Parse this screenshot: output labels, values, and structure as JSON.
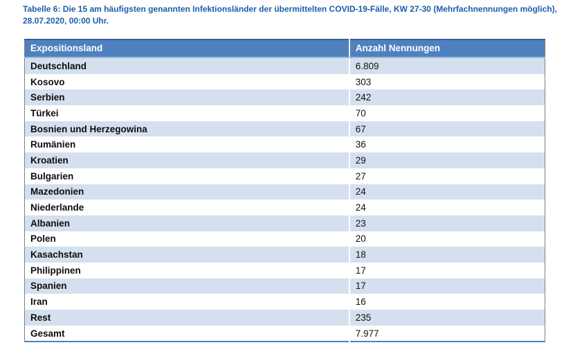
{
  "caption": {
    "line1": "Tabelle 6: Die 15 am häufigsten genannten Infektionsländer der übermittelten COVID-19-Fälle, KW 27-30 (Mehrfachnennungen möglich),",
    "line2": "28.07.2020, 00:00 Uhr."
  },
  "table": {
    "columns": [
      "Expositionsland",
      "Anzahl Nennungen"
    ],
    "rows": [
      {
        "land": "Deutschland",
        "anzahl": "6.809"
      },
      {
        "land": "Kosovo",
        "anzahl": "303"
      },
      {
        "land": "Serbien",
        "anzahl": "242"
      },
      {
        "land": "Türkei",
        "anzahl": "70"
      },
      {
        "land": "Bosnien und Herzegowina",
        "anzahl": "67"
      },
      {
        "land": "Rumänien",
        "anzahl": "36"
      },
      {
        "land": "Kroatien",
        "anzahl": "29"
      },
      {
        "land": "Bulgarien",
        "anzahl": "27"
      },
      {
        "land": "Mazedonien",
        "anzahl": "24"
      },
      {
        "land": "Niederlande",
        "anzahl": "24"
      },
      {
        "land": "Albanien",
        "anzahl": "23"
      },
      {
        "land": "Polen",
        "anzahl": "20"
      },
      {
        "land": "Kasachstan",
        "anzahl": "18"
      },
      {
        "land": "Philippinen",
        "anzahl": "17"
      },
      {
        "land": "Spanien",
        "anzahl": "17"
      },
      {
        "land": "Iran",
        "anzahl": "16"
      },
      {
        "land": "Rest",
        "anzahl": "235"
      },
      {
        "land": "Gesamt",
        "anzahl": "7.977"
      }
    ]
  },
  "colors": {
    "header_bg": "#4e81bd",
    "band_bg": "#d5e0ee",
    "caption_blue": "#1d5da9",
    "outer_border_gray": "#7f7f7f",
    "bottom_rule_blue": "#4f81bd"
  }
}
